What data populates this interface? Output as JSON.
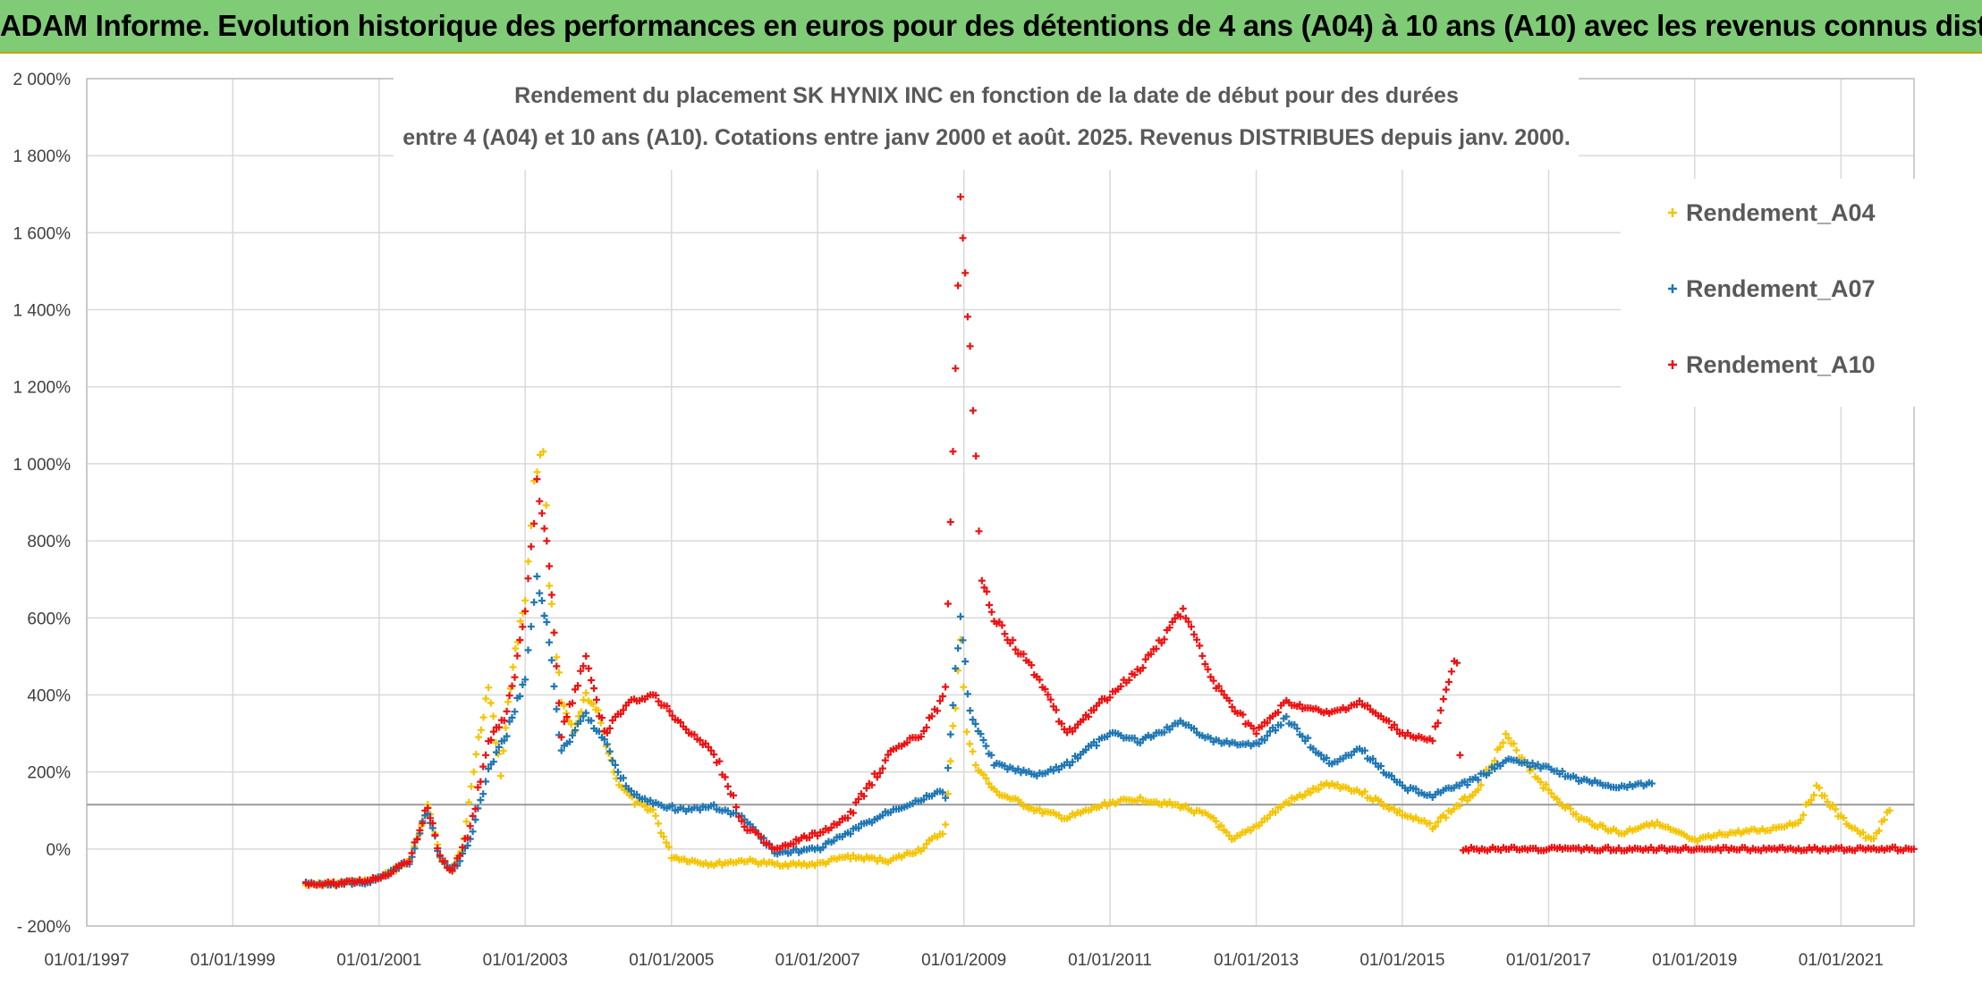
{
  "header": {
    "title": "ADAM Informe. Evolution historique des performances en euros pour des détentions de 4 ans (A04) à 10 ans (A10) avec les revenus connus distribués"
  },
  "chart_data": {
    "type": "scatter",
    "title_line1": "Rendement du placement SK HYNIX INC en fonction de la date de début pour des durées",
    "title_line2": "entre 4 (A04) et 10 ans (A10). Cotations entre janv 2000 et août. 2025. Revenus DISTRIBUES depuis janv. 2000.",
    "x_axis": {
      "type": "date",
      "min": "1997-01-01",
      "max": "2022-01-01",
      "ticks": [
        "01/01/1997",
        "01/01/1999",
        "01/01/2001",
        "01/01/2003",
        "01/01/2005",
        "01/01/2007",
        "01/01/2009",
        "01/01/2011",
        "01/01/2013",
        "01/01/2015",
        "01/01/2017",
        "01/01/2019",
        "01/01/2021"
      ]
    },
    "y_axis": {
      "unit": "%",
      "min": -200,
      "max": 2000,
      "step": 200,
      "ticks": [
        "- 200%",
        "0%",
        "200%",
        "400%",
        "600%",
        "800%",
        "1 000%",
        "1 200%",
        "1 400%",
        "1 600%",
        "1 800%",
        "2 000%"
      ]
    },
    "grid": true,
    "legend_position": "top-right",
    "series": [
      {
        "name": "Rendement_A04",
        "color": "#f5c400",
        "points": [
          [
            "2000-01-01",
            -90
          ],
          [
            "2000-04-01",
            -92
          ],
          [
            "2000-08-01",
            -88
          ],
          [
            "2000-12-01",
            -80
          ],
          [
            "2001-03-01",
            -60
          ],
          [
            "2001-06-01",
            -30
          ],
          [
            "2001-08-01",
            60
          ],
          [
            "2001-09-01",
            110
          ],
          [
            "2001-11-01",
            -20
          ],
          [
            "2002-01-01",
            -55
          ],
          [
            "2002-03-01",
            20
          ],
          [
            "2002-05-01",
            250
          ],
          [
            "2002-07-01",
            420
          ],
          [
            "2002-09-01",
            200
          ],
          [
            "2002-11-01",
            480
          ],
          [
            "2003-01-01",
            650
          ],
          [
            "2003-02-15",
            950
          ],
          [
            "2003-04-01",
            1050
          ],
          [
            "2003-05-01",
            700
          ],
          [
            "2003-07-01",
            380
          ],
          [
            "2003-09-01",
            300
          ],
          [
            "2003-11-01",
            400
          ],
          [
            "2004-01-01",
            350
          ],
          [
            "2004-04-01",
            180
          ],
          [
            "2004-07-01",
            120
          ],
          [
            "2004-10-01",
            100
          ],
          [
            "2005-01-01",
            -20
          ],
          [
            "2005-04-01",
            -30
          ],
          [
            "2005-08-01",
            -40
          ],
          [
            "2006-01-01",
            -30
          ],
          [
            "2006-06-01",
            -40
          ],
          [
            "2007-01-01",
            -40
          ],
          [
            "2007-06-01",
            -20
          ],
          [
            "2008-01-01",
            -30
          ],
          [
            "2008-06-01",
            0
          ],
          [
            "2008-10-01",
            50
          ],
          [
            "2008-12-15",
            550
          ],
          [
            "2009-01-15",
            300
          ],
          [
            "2009-03-01",
            220
          ],
          [
            "2009-06-01",
            150
          ],
          [
            "2010-01-01",
            100
          ],
          [
            "2010-06-01",
            80
          ],
          [
            "2011-01-01",
            120
          ],
          [
            "2011-06-01",
            130
          ],
          [
            "2012-01-01",
            110
          ],
          [
            "2012-06-01",
            80
          ],
          [
            "2012-09-01",
            20
          ],
          [
            "2013-01-01",
            60
          ],
          [
            "2013-06-01",
            120
          ],
          [
            "2014-01-01",
            170
          ],
          [
            "2014-06-01",
            150
          ],
          [
            "2015-01-01",
            90
          ],
          [
            "2015-06-01",
            60
          ],
          [
            "2016-01-01",
            150
          ],
          [
            "2016-06-01",
            290
          ],
          [
            "2017-01-01",
            150
          ],
          [
            "2017-06-01",
            80
          ],
          [
            "2018-01-01",
            40
          ],
          [
            "2018-06-01",
            70
          ],
          [
            "2019-01-01",
            20
          ],
          [
            "2019-06-01",
            40
          ],
          [
            "2020-01-01",
            50
          ],
          [
            "2020-06-01",
            70
          ],
          [
            "2020-09-01",
            160
          ],
          [
            "2021-01-01",
            80
          ],
          [
            "2021-06-01",
            20
          ],
          [
            "2021-09-01",
            100
          ]
        ]
      },
      {
        "name": "Rendement_A07",
        "color": "#1f77b4",
        "points": [
          [
            "2000-01-01",
            -90
          ],
          [
            "2000-06-01",
            -90
          ],
          [
            "2000-12-01",
            -85
          ],
          [
            "2001-03-01",
            -60
          ],
          [
            "2001-06-01",
            -30
          ],
          [
            "2001-09-01",
            100
          ],
          [
            "2001-11-01",
            -20
          ],
          [
            "2002-01-01",
            -60
          ],
          [
            "2002-04-01",
            20
          ],
          [
            "2002-07-01",
            200
          ],
          [
            "2002-10-01",
            300
          ],
          [
            "2003-01-01",
            450
          ],
          [
            "2003-03-01",
            700
          ],
          [
            "2003-05-01",
            550
          ],
          [
            "2003-07-01",
            250
          ],
          [
            "2003-11-01",
            350
          ],
          [
            "2004-02-01",
            280
          ],
          [
            "2004-06-01",
            150
          ],
          [
            "2004-10-01",
            120
          ],
          [
            "2005-03-01",
            100
          ],
          [
            "2005-08-01",
            110
          ],
          [
            "2006-01-01",
            80
          ],
          [
            "2006-06-01",
            -10
          ],
          [
            "2007-01-01",
            0
          ],
          [
            "2007-06-01",
            40
          ],
          [
            "2008-01-01",
            100
          ],
          [
            "2008-06-01",
            130
          ],
          [
            "2008-10-01",
            150
          ],
          [
            "2008-12-15",
            600
          ],
          [
            "2009-02-01",
            350
          ],
          [
            "2009-06-01",
            220
          ],
          [
            "2010-01-01",
            190
          ],
          [
            "2010-06-01",
            220
          ],
          [
            "2011-01-01",
            300
          ],
          [
            "2011-06-01",
            280
          ],
          [
            "2012-01-01",
            330
          ],
          [
            "2012-06-01",
            280
          ],
          [
            "2013-01-01",
            270
          ],
          [
            "2013-06-01",
            340
          ],
          [
            "2014-01-01",
            220
          ],
          [
            "2014-06-01",
            260
          ],
          [
            "2015-01-01",
            160
          ],
          [
            "2015-06-01",
            140
          ],
          [
            "2016-01-01",
            180
          ],
          [
            "2016-06-01",
            230
          ],
          [
            "2017-01-01",
            210
          ],
          [
            "2017-06-01",
            180
          ],
          [
            "2018-01-01",
            160
          ],
          [
            "2018-06-01",
            170
          ]
        ]
      },
      {
        "name": "Rendement_A10",
        "color": "#ee1111",
        "points": [
          [
            "2000-01-01",
            -90
          ],
          [
            "2000-06-01",
            -90
          ],
          [
            "2000-12-01",
            -80
          ],
          [
            "2001-03-01",
            -60
          ],
          [
            "2001-06-01",
            -30
          ],
          [
            "2001-09-01",
            110
          ],
          [
            "2001-11-01",
            -20
          ],
          [
            "2002-01-01",
            -60
          ],
          [
            "2002-04-01",
            50
          ],
          [
            "2002-07-01",
            280
          ],
          [
            "2002-10-01",
            350
          ],
          [
            "2003-01-01",
            600
          ],
          [
            "2003-03-01",
            950
          ],
          [
            "2003-05-01",
            750
          ],
          [
            "2003-07-01",
            300
          ],
          [
            "2003-11-01",
            500
          ],
          [
            "2004-02-01",
            300
          ],
          [
            "2004-06-01",
            380
          ],
          [
            "2004-10-01",
            400
          ],
          [
            "2005-03-01",
            320
          ],
          [
            "2005-08-01",
            250
          ],
          [
            "2006-01-01",
            60
          ],
          [
            "2006-06-01",
            0
          ],
          [
            "2007-01-01",
            40
          ],
          [
            "2007-06-01",
            80
          ],
          [
            "2008-01-01",
            250
          ],
          [
            "2008-06-01",
            300
          ],
          [
            "2008-10-01",
            400
          ],
          [
            "2008-12-15",
            1700
          ],
          [
            "2009-02-01",
            1300
          ],
          [
            "2009-04-01",
            700
          ],
          [
            "2009-06-01",
            600
          ],
          [
            "2010-01-01",
            450
          ],
          [
            "2010-06-01",
            300
          ],
          [
            "2011-01-01",
            400
          ],
          [
            "2011-06-01",
            470
          ],
          [
            "2012-01-01",
            620
          ],
          [
            "2012-06-01",
            430
          ],
          [
            "2013-01-01",
            300
          ],
          [
            "2013-06-01",
            380
          ],
          [
            "2014-01-01",
            350
          ],
          [
            "2014-06-01",
            380
          ],
          [
            "2015-01-01",
            300
          ],
          [
            "2015-06-01",
            280
          ],
          [
            "2015-10-01",
            500
          ],
          [
            "2015-11-01",
            0
          ],
          [
            "2021-12-31",
            0
          ]
        ]
      }
    ],
    "reference_line_y": 115
  }
}
